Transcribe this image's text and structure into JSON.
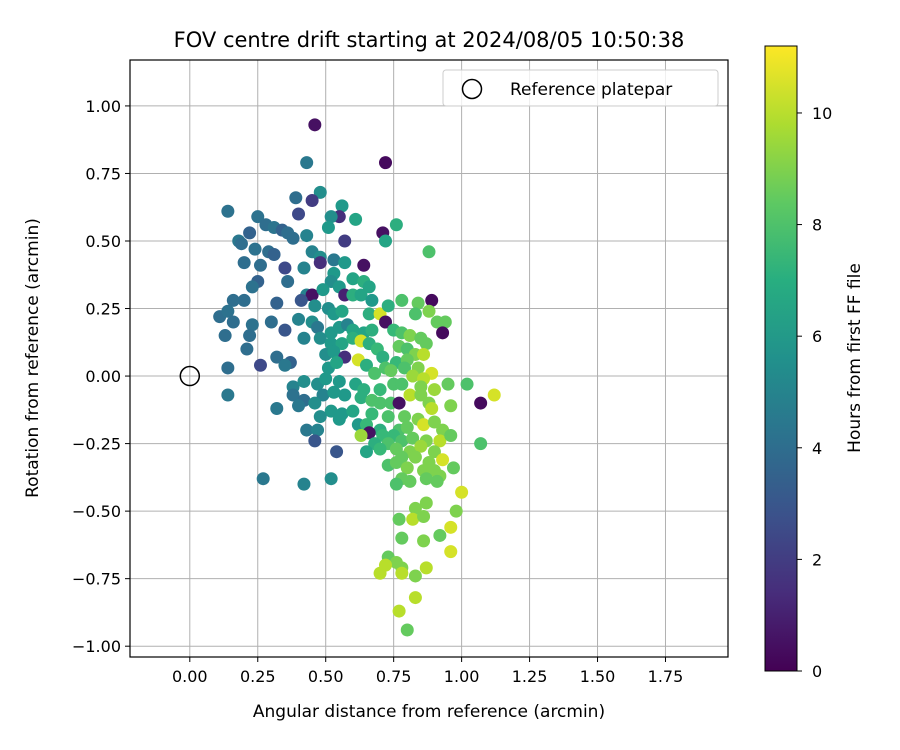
{
  "chart_data": {
    "type": "scatter",
    "title": "FOV centre drift starting at 2024/08/05 10:50:38",
    "xlabel": "Angular distance from reference (arcmin)",
    "ylabel": "Rotation from reference (arcmin)",
    "xlim": [
      -0.22,
      1.98
    ],
    "ylim": [
      -1.04,
      1.17
    ],
    "xticks": [
      0.0,
      0.25,
      0.5,
      0.75,
      1.0,
      1.25,
      1.5,
      1.75
    ],
    "xtick_labels": [
      "0.00",
      "0.25",
      "0.50",
      "0.75",
      "1.00",
      "1.25",
      "1.50",
      "1.75"
    ],
    "yticks": [
      1.0,
      0.75,
      0.5,
      0.25,
      0.0,
      -0.25,
      -0.5,
      -0.75,
      -1.0
    ],
    "ytick_labels": [
      "1.00",
      "0.75",
      "0.50",
      "0.25",
      "0.00",
      "−0.25",
      "−0.50",
      "−0.75",
      "−1.00"
    ],
    "grid": true,
    "colormap": "viridis",
    "colorbar": {
      "label": "Hours from first FF file",
      "range": [
        0,
        11.2
      ],
      "ticks": [
        0,
        2,
        4,
        6,
        8,
        10
      ],
      "tick_labels": [
        "0",
        "2",
        "4",
        "6",
        "8",
        "10"
      ]
    },
    "legend": {
      "position": "top-right",
      "entries": [
        {
          "label": "Reference platepar",
          "marker": "open-circle"
        }
      ]
    },
    "reference_point": {
      "x": 0.0,
      "y": 0.0
    },
    "points": [
      [
        0.46,
        0.93,
        0.5
      ],
      [
        0.43,
        0.79,
        4.5
      ],
      [
        0.72,
        0.79,
        0.3
      ],
      [
        0.48,
        0.68,
        5.5
      ],
      [
        0.39,
        0.66,
        4
      ],
      [
        0.45,
        0.65,
        2
      ],
      [
        0.56,
        0.63,
        6
      ],
      [
        0.4,
        0.6,
        2.5
      ],
      [
        0.14,
        0.61,
        4.2
      ],
      [
        0.25,
        0.59,
        4.2
      ],
      [
        0.55,
        0.59,
        1.5
      ],
      [
        0.52,
        0.59,
        5.5
      ],
      [
        0.61,
        0.58,
        6.5
      ],
      [
        0.76,
        0.56,
        7
      ],
      [
        0.28,
        0.56,
        4
      ],
      [
        0.31,
        0.55,
        4.3
      ],
      [
        0.34,
        0.54,
        3.5
      ],
      [
        0.36,
        0.53,
        4
      ],
      [
        0.22,
        0.53,
        3.5
      ],
      [
        0.38,
        0.51,
        4
      ],
      [
        0.51,
        0.55,
        6
      ],
      [
        0.43,
        0.52,
        5
      ],
      [
        0.71,
        0.53,
        0.5
      ],
      [
        0.57,
        0.5,
        2
      ],
      [
        0.72,
        0.5,
        6.5
      ],
      [
        0.18,
        0.5,
        4.5
      ],
      [
        0.19,
        0.49,
        4
      ],
      [
        0.24,
        0.47,
        4.2
      ],
      [
        0.29,
        0.46,
        4
      ],
      [
        0.31,
        0.45,
        3.5
      ],
      [
        0.45,
        0.46,
        5
      ],
      [
        0.48,
        0.44,
        5.5
      ],
      [
        0.53,
        0.43,
        4.5
      ],
      [
        0.57,
        0.42,
        6
      ],
      [
        0.64,
        0.41,
        0.5
      ],
      [
        0.26,
        0.41,
        4
      ],
      [
        0.2,
        0.42,
        4
      ],
      [
        0.88,
        0.46,
        8
      ],
      [
        0.35,
        0.4,
        2.5
      ],
      [
        0.42,
        0.4,
        5
      ],
      [
        0.48,
        0.42,
        1.5
      ],
      [
        0.53,
        0.38,
        6
      ],
      [
        0.6,
        0.36,
        6.5
      ],
      [
        0.64,
        0.35,
        7
      ],
      [
        0.66,
        0.33,
        6.5
      ],
      [
        0.25,
        0.35,
        3.5
      ],
      [
        0.36,
        0.35,
        4
      ],
      [
        0.52,
        0.35,
        5.5
      ],
      [
        0.55,
        0.33,
        6
      ],
      [
        0.23,
        0.33,
        4.2
      ],
      [
        0.43,
        0.3,
        5
      ],
      [
        0.45,
        0.3,
        0.5
      ],
      [
        0.49,
        0.32,
        6
      ],
      [
        0.57,
        0.3,
        1
      ],
      [
        0.6,
        0.3,
        7
      ],
      [
        0.63,
        0.3,
        6.5
      ],
      [
        0.67,
        0.28,
        6
      ],
      [
        0.89,
        0.28,
        0.3
      ],
      [
        0.78,
        0.28,
        8
      ],
      [
        0.84,
        0.27,
        8.5
      ],
      [
        0.2,
        0.28,
        4
      ],
      [
        0.16,
        0.28,
        4
      ],
      [
        0.32,
        0.27,
        3.5
      ],
      [
        0.41,
        0.28,
        3
      ],
      [
        0.46,
        0.26,
        5.5
      ],
      [
        0.51,
        0.25,
        5.5
      ],
      [
        0.53,
        0.23,
        6
      ],
      [
        0.56,
        0.24,
        6.5
      ],
      [
        0.66,
        0.23,
        7
      ],
      [
        0.7,
        0.23,
        10.5
      ],
      [
        0.73,
        0.26,
        7
      ],
      [
        0.83,
        0.23,
        8
      ],
      [
        0.88,
        0.24,
        9
      ],
      [
        0.91,
        0.2,
        8.5
      ],
      [
        0.94,
        0.2,
        8.5
      ],
      [
        0.11,
        0.22,
        4
      ],
      [
        0.14,
        0.24,
        4.2
      ],
      [
        0.16,
        0.2,
        4
      ],
      [
        0.23,
        0.19,
        4.2
      ],
      [
        0.3,
        0.2,
        4
      ],
      [
        0.4,
        0.21,
        5
      ],
      [
        0.45,
        0.2,
        5.5
      ],
      [
        0.47,
        0.18,
        4.5
      ],
      [
        0.52,
        0.16,
        6
      ],
      [
        0.55,
        0.18,
        6
      ],
      [
        0.58,
        0.19,
        5
      ],
      [
        0.6,
        0.17,
        6.5
      ],
      [
        0.64,
        0.16,
        6.5
      ],
      [
        0.67,
        0.17,
        7
      ],
      [
        0.72,
        0.2,
        0.5
      ],
      [
        0.75,
        0.17,
        7.5
      ],
      [
        0.78,
        0.16,
        8
      ],
      [
        0.81,
        0.15,
        9
      ],
      [
        0.85,
        0.14,
        8.5
      ],
      [
        0.87,
        0.12,
        8.5
      ],
      [
        0.93,
        0.16,
        0.3
      ],
      [
        0.13,
        0.15,
        4
      ],
      [
        0.22,
        0.15,
        4
      ],
      [
        0.35,
        0.17,
        3
      ],
      [
        0.42,
        0.14,
        5
      ],
      [
        0.48,
        0.14,
        5.5
      ],
      [
        0.52,
        0.12,
        6
      ],
      [
        0.56,
        0.12,
        6.5
      ],
      [
        0.6,
        0.14,
        7
      ],
      [
        0.63,
        0.13,
        10.5
      ],
      [
        0.66,
        0.12,
        7
      ],
      [
        0.69,
        0.1,
        7.5
      ],
      [
        0.77,
        0.11,
        8.5
      ],
      [
        0.8,
        0.1,
        8
      ],
      [
        0.83,
        0.08,
        9
      ],
      [
        0.86,
        0.08,
        10
      ],
      [
        0.21,
        0.1,
        4
      ],
      [
        0.32,
        0.07,
        4
      ],
      [
        0.37,
        0.05,
        3.5
      ],
      [
        0.5,
        0.08,
        5.5
      ],
      [
        0.53,
        0.09,
        6
      ],
      [
        0.57,
        0.07,
        1.5
      ],
      [
        0.62,
        0.06,
        10.5
      ],
      [
        0.71,
        0.07,
        7
      ],
      [
        0.72,
        0.03,
        8
      ],
      [
        0.76,
        0.05,
        7.5
      ],
      [
        0.8,
        0.06,
        8.5
      ],
      [
        0.84,
        0.03,
        9
      ],
      [
        0.89,
        0.01,
        10.5
      ],
      [
        0.14,
        0.03,
        4
      ],
      [
        0.26,
        0.04,
        2.5
      ],
      [
        0.35,
        0.04,
        4.5
      ],
      [
        0.51,
        0.03,
        6
      ],
      [
        0.54,
        0.05,
        6.5
      ],
      [
        0.65,
        0.04,
        7
      ],
      [
        0.68,
        0.01,
        8
      ],
      [
        0.74,
        0.02,
        8.5
      ],
      [
        0.79,
        0.03,
        8
      ],
      [
        0.82,
        0.0,
        9.5
      ],
      [
        0.86,
        -0.01,
        10
      ],
      [
        0.38,
        -0.04,
        5
      ],
      [
        0.42,
        -0.02,
        5.5
      ],
      [
        0.47,
        -0.03,
        5.5
      ],
      [
        0.5,
        -0.01,
        6
      ],
      [
        0.55,
        -0.02,
        6
      ],
      [
        0.61,
        -0.03,
        6.5
      ],
      [
        0.64,
        -0.05,
        7
      ],
      [
        0.7,
        -0.05,
        7.5
      ],
      [
        0.75,
        -0.03,
        8
      ],
      [
        0.78,
        -0.03,
        8
      ],
      [
        0.85,
        -0.04,
        9
      ],
      [
        0.9,
        -0.05,
        9.5
      ],
      [
        0.95,
        -0.03,
        8.5
      ],
      [
        1.02,
        -0.03,
        8
      ],
      [
        1.12,
        -0.07,
        10.5
      ],
      [
        0.14,
        -0.07,
        4.5
      ],
      [
        0.38,
        -0.07,
        4.2
      ],
      [
        0.42,
        -0.09,
        4
      ],
      [
        0.49,
        -0.07,
        5
      ],
      [
        0.53,
        -0.06,
        6
      ],
      [
        0.57,
        -0.07,
        6
      ],
      [
        0.63,
        -0.08,
        7
      ],
      [
        0.67,
        -0.09,
        8
      ],
      [
        0.7,
        -0.1,
        8
      ],
      [
        0.74,
        -0.1,
        8
      ],
      [
        0.77,
        -0.1,
        0.5
      ],
      [
        0.81,
        -0.07,
        10
      ],
      [
        0.85,
        -0.07,
        9
      ],
      [
        0.88,
        -0.1,
        9
      ],
      [
        0.96,
        -0.11,
        9
      ],
      [
        1.07,
        -0.1,
        0.3
      ],
      [
        0.4,
        -0.11,
        4.5
      ],
      [
        0.46,
        -0.1,
        5.5
      ],
      [
        0.32,
        -0.12,
        4.5
      ],
      [
        0.52,
        -0.13,
        6
      ],
      [
        0.56,
        -0.14,
        6
      ],
      [
        0.6,
        -0.13,
        6.5
      ],
      [
        0.67,
        -0.14,
        7.5
      ],
      [
        0.73,
        -0.15,
        8
      ],
      [
        0.79,
        -0.15,
        8.5
      ],
      [
        0.84,
        -0.16,
        9
      ],
      [
        0.89,
        -0.12,
        10
      ],
      [
        0.48,
        -0.15,
        5.5
      ],
      [
        0.55,
        -0.16,
        6
      ],
      [
        0.62,
        -0.18,
        6
      ],
      [
        0.65,
        -0.18,
        7.5
      ],
      [
        0.7,
        -0.2,
        7
      ],
      [
        0.77,
        -0.2,
        8
      ],
      [
        0.8,
        -0.19,
        8.5
      ],
      [
        0.86,
        -0.18,
        10.5
      ],
      [
        0.9,
        -0.17,
        9
      ],
      [
        0.93,
        -0.2,
        9
      ],
      [
        0.43,
        -0.2,
        4.5
      ],
      [
        0.47,
        -0.2,
        5
      ],
      [
        0.66,
        -0.21,
        0.5
      ],
      [
        0.71,
        -0.22,
        7.5
      ],
      [
        0.75,
        -0.22,
        7.5
      ],
      [
        0.78,
        -0.24,
        8
      ],
      [
        0.82,
        -0.23,
        8.5
      ],
      [
        0.87,
        -0.24,
        9
      ],
      [
        0.92,
        -0.24,
        10
      ],
      [
        0.96,
        -0.22,
        8.5
      ],
      [
        0.63,
        -0.22,
        9.5
      ],
      [
        0.46,
        -0.24,
        3
      ],
      [
        0.68,
        -0.25,
        7
      ],
      [
        0.73,
        -0.25,
        8
      ],
      [
        0.76,
        -0.27,
        8.5
      ],
      [
        0.81,
        -0.28,
        9
      ],
      [
        0.85,
        -0.26,
        9.5
      ],
      [
        0.9,
        -0.28,
        9
      ],
      [
        1.07,
        -0.25,
        8
      ],
      [
        0.54,
        -0.28,
        3
      ],
      [
        0.65,
        -0.28,
        6.5
      ],
      [
        0.7,
        -0.27,
        7.5
      ],
      [
        0.78,
        -0.3,
        8.5
      ],
      [
        0.83,
        -0.3,
        9
      ],
      [
        0.88,
        -0.32,
        9
      ],
      [
        0.93,
        -0.31,
        10.5
      ],
      [
        0.73,
        -0.33,
        8
      ],
      [
        0.76,
        -0.32,
        8.5
      ],
      [
        0.8,
        -0.34,
        9
      ],
      [
        0.86,
        -0.35,
        9
      ],
      [
        0.9,
        -0.35,
        9
      ],
      [
        0.97,
        -0.34,
        8.5
      ],
      [
        0.78,
        -0.38,
        8.5
      ],
      [
        0.81,
        -0.39,
        8.5
      ],
      [
        0.87,
        -0.38,
        8.5
      ],
      [
        0.92,
        -0.37,
        9
      ],
      [
        0.27,
        -0.38,
        4.5
      ],
      [
        0.42,
        -0.4,
        5
      ],
      [
        0.52,
        -0.38,
        5.5
      ],
      [
        0.76,
        -0.4,
        8
      ],
      [
        0.91,
        -0.39,
        8.5
      ],
      [
        1.0,
        -0.43,
        10.5
      ],
      [
        0.87,
        -0.47,
        9
      ],
      [
        0.83,
        -0.49,
        9
      ],
      [
        0.98,
        -0.5,
        9
      ],
      [
        0.77,
        -0.53,
        8.5
      ],
      [
        0.82,
        -0.53,
        10
      ],
      [
        0.86,
        -0.52,
        9
      ],
      [
        0.96,
        -0.56,
        10.5
      ],
      [
        0.92,
        -0.59,
        8.5
      ],
      [
        0.78,
        -0.6,
        8.5
      ],
      [
        0.86,
        -0.61,
        9
      ],
      [
        0.96,
        -0.65,
        10.5
      ],
      [
        0.73,
        -0.67,
        8.5
      ],
      [
        0.76,
        -0.69,
        9
      ],
      [
        0.72,
        -0.7,
        10
      ],
      [
        0.78,
        -0.71,
        9
      ],
      [
        0.87,
        -0.71,
        10
      ],
      [
        0.7,
        -0.73,
        10
      ],
      [
        0.78,
        -0.73,
        10
      ],
      [
        0.83,
        -0.74,
        9
      ],
      [
        0.83,
        -0.82,
        10
      ],
      [
        0.77,
        -0.87,
        10
      ],
      [
        0.8,
        -0.94,
        8.5
      ]
    ]
  }
}
